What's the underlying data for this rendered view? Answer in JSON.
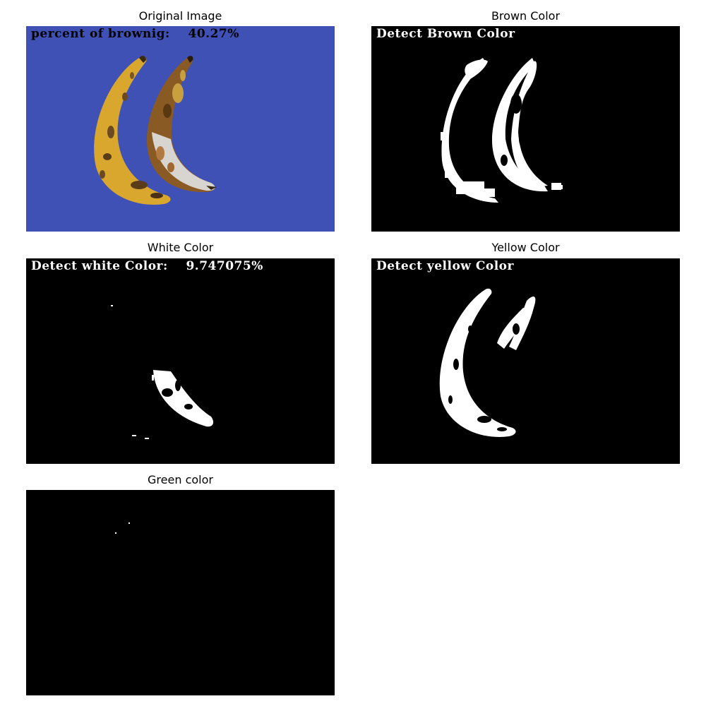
{
  "colors": {
    "background": "#ffffff",
    "original_bg": "#3f51b5",
    "mask_bg": "#000000",
    "mask_fg": "#ffffff",
    "banana_yellow": "#d9a72e",
    "banana_brown": "#6b4a22",
    "banana_white": "#d8d4cf"
  },
  "panels": [
    {
      "title": "Original Image",
      "overlay": "percent of brownig:    40.27%",
      "overlay_color": "#000000",
      "kind": "original"
    },
    {
      "title": "Brown Color",
      "overlay": "Detect Brown Color",
      "overlay_color": "#ffffff",
      "kind": "brown-mask"
    },
    {
      "title": "White Color",
      "overlay": "Detect white Color:    9.747075%",
      "overlay_color": "#ffffff",
      "kind": "white-mask"
    },
    {
      "title": "Yellow Color",
      "overlay": "Detect yellow Color",
      "overlay_color": "#ffffff",
      "kind": "yellow-mask"
    },
    {
      "title": "Green color",
      "overlay": "",
      "overlay_color": "#ffffff",
      "kind": "green-mask"
    }
  ]
}
